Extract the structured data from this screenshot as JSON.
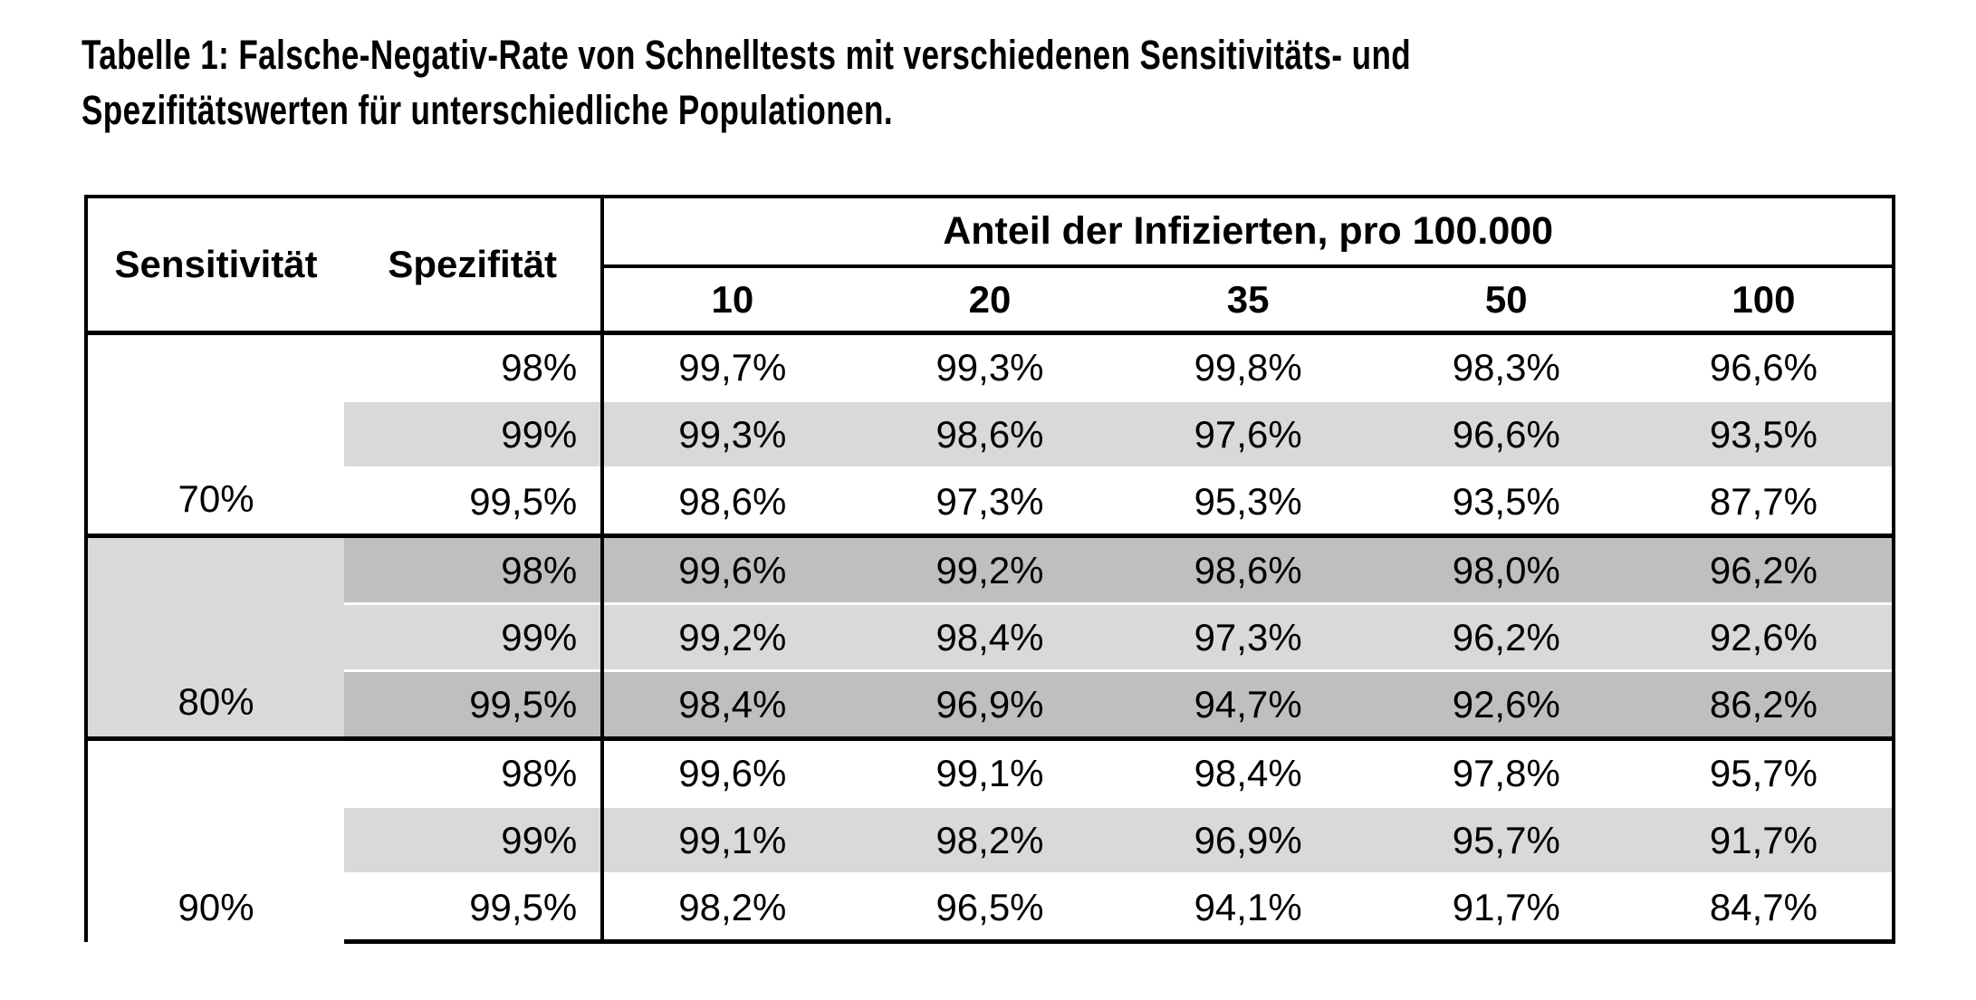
{
  "title": {
    "line1": "Tabelle 1: Falsche-Negativ-Rate von Schnelltests mit verschiedenen Sensitivitäts- und",
    "line2": "Spezifitätswerten für unterschiedliche Populationen."
  },
  "table": {
    "header": {
      "sensitivity": "Sensitivität",
      "specificity": "Spezifität",
      "group_title": "Anteil der Infizierten, pro 100.000",
      "subcols": [
        "10",
        "20",
        "35",
        "50",
        "100"
      ]
    },
    "groups": [
      {
        "sens": "70%",
        "rows": [
          {
            "spez": "98%",
            "values": [
              "99,7%",
              "99,3%",
              "99,8%",
              "98,3%",
              "96,6%"
            ]
          },
          {
            "spez": "99%",
            "values": [
              "99,3%",
              "98,6%",
              "97,6%",
              "96,6%",
              "93,5%"
            ]
          },
          {
            "spez": "99,5%",
            "values": [
              "98,6%",
              "97,3%",
              "95,3%",
              "93,5%",
              "87,7%"
            ]
          }
        ]
      },
      {
        "sens": "80%",
        "rows": [
          {
            "spez": "98%",
            "values": [
              "99,6%",
              "99,2%",
              "98,6%",
              "98,0%",
              "96,2%"
            ]
          },
          {
            "spez": "99%",
            "values": [
              "99,2%",
              "98,4%",
              "97,3%",
              "96,2%",
              "92,6%"
            ]
          },
          {
            "spez": "99,5%",
            "values": [
              "98,4%",
              "96,9%",
              "94,7%",
              "92,6%",
              "86,2%"
            ]
          }
        ]
      },
      {
        "sens": "90%",
        "rows": [
          {
            "spez": "98%",
            "values": [
              "99,6%",
              "99,1%",
              "98,4%",
              "97,8%",
              "95,7%"
            ]
          },
          {
            "spez": "99%",
            "values": [
              "99,1%",
              "98,2%",
              "96,9%",
              "95,7%",
              "91,7%"
            ]
          },
          {
            "spez": "99,5%",
            "values": [
              "98,2%",
              "96,5%",
              "94,1%",
              "91,7%",
              "84,7%"
            ]
          }
        ]
      }
    ]
  },
  "colors": {
    "row_shade_light": "#d9d9d9",
    "row_shade_dark": "#bfbfbf",
    "border": "#000000",
    "text": "#000000",
    "background": "#ffffff"
  }
}
